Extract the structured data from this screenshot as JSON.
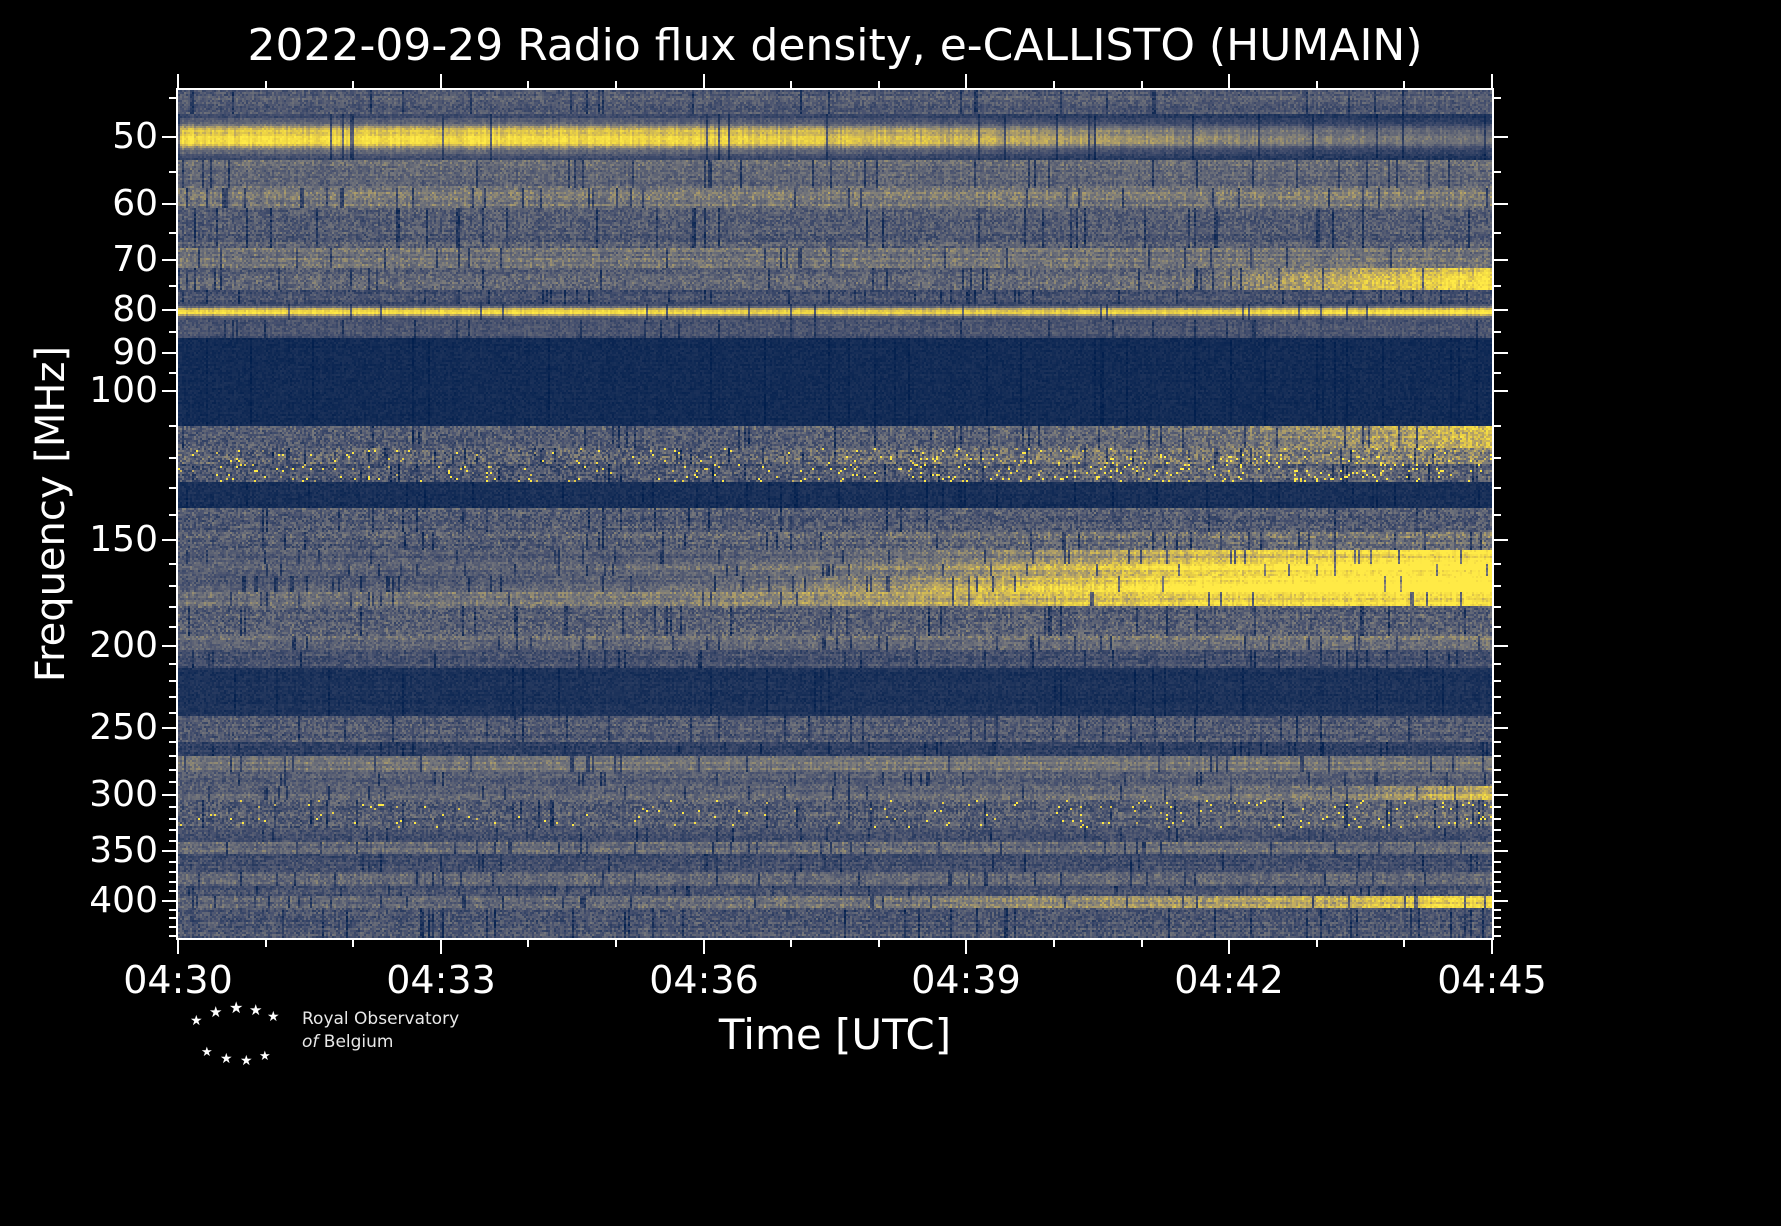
{
  "footer": {
    "logo_line1": "Royal Observatory",
    "logo_line2": "of Belgium",
    "star_glyph": "★",
    "star_count": 9
  },
  "chart_data": {
    "type": "heatmap",
    "title": "2022-09-29 Radio flux density, e-CALLISTO (HUMAIN)",
    "xlabel": "Time [UTC]",
    "ylabel": "Frequency [MHz]",
    "x_start": "04:30",
    "x_end": "04:45",
    "x_span_minutes": 15,
    "x_ticks": [
      {
        "minute": 0,
        "label": "04:30"
      },
      {
        "minute": 3,
        "label": "04:33"
      },
      {
        "minute": 6,
        "label": "04:36"
      },
      {
        "minute": 9,
        "label": "04:39"
      },
      {
        "minute": 12,
        "label": "04:42"
      },
      {
        "minute": 15,
        "label": "04:45"
      }
    ],
    "x_minor_ticks_min": [
      1,
      2,
      4,
      5,
      7,
      8,
      10,
      11,
      13,
      14
    ],
    "y_scale": "log",
    "f_min": 44,
    "f_max": 443,
    "y_ticks": [
      50,
      60,
      70,
      80,
      90,
      100,
      150,
      200,
      250,
      300,
      350,
      400
    ],
    "y_minor_ticks": [
      45,
      55,
      65,
      75,
      85,
      95,
      110,
      120,
      130,
      140,
      160,
      170,
      180,
      190,
      210,
      220,
      230,
      240,
      260,
      270,
      280,
      290,
      310,
      320,
      330,
      340,
      360,
      370,
      380,
      390,
      410,
      420,
      430,
      440
    ],
    "grid": false,
    "legend": "none",
    "colormap": {
      "name": "cividis-like",
      "stops": [
        [
          0.0,
          [
            0,
            30,
            77
          ]
        ],
        [
          0.3,
          [
            70,
            80,
            110
          ]
        ],
        [
          0.5,
          [
            118,
            119,
            123
          ]
        ],
        [
          0.7,
          [
            189,
            168,
            98
          ]
        ],
        [
          0.85,
          [
            234,
            208,
            68
          ]
        ],
        [
          1.0,
          [
            255,
            234,
            70
          ]
        ]
      ]
    },
    "bands": [
      {
        "f": [
          44,
          47.2
        ],
        "base": 0.36,
        "noise": 0.1
      },
      {
        "f": [
          47.2,
          53.5
        ],
        "base": 0.97,
        "noise": 0.06,
        "env": "gauss",
        "profile": [
          1,
          1,
          1,
          0.97,
          0.93,
          0.85,
          0.72,
          0.62,
          0.55,
          0.5
        ]
      },
      {
        "f": [
          53.5,
          57.5
        ],
        "base": 0.42,
        "noise": 0.1
      },
      {
        "f": [
          57.5,
          61
        ],
        "base": 0.5,
        "noise": 0.1
      },
      {
        "f": [
          61,
          68
        ],
        "base": 0.36,
        "noise": 0.12
      },
      {
        "f": [
          68,
          71.5
        ],
        "base": 0.48,
        "noise": 0.1
      },
      {
        "f": [
          71.5,
          76
        ],
        "base": 0.38,
        "noise": 0.12,
        "profile": [
          1,
          1,
          1,
          1,
          1,
          1,
          1.05,
          1.1,
          1.8,
          2.3
        ]
      },
      {
        "f": [
          76,
          79
        ],
        "base": 0.3,
        "noise": 0.1
      },
      {
        "f": [
          79,
          82.5
        ],
        "base": 0.95,
        "noise": 0.05,
        "env": "gauss",
        "profile": [
          1,
          1,
          1,
          1,
          0.95,
          0.92,
          0.92,
          0.95,
          1,
          1.05
        ]
      },
      {
        "f": [
          82.5,
          86.5
        ],
        "base": 0.3,
        "noise": 0.08
      },
      {
        "f": [
          86.5,
          110
        ],
        "base": 0.08,
        "noise": 0.04
      },
      {
        "f": [
          110,
          117
        ],
        "base": 0.4,
        "noise": 0.14,
        "profile": [
          0.9,
          0.9,
          0.9,
          0.9,
          0.92,
          0.95,
          1,
          1.1,
          1.5,
          2
        ]
      },
      {
        "f": [
          117,
          122
        ],
        "base": 0.42,
        "noise": 0.18,
        "spike": 0.02,
        "profile": [
          0.9,
          0.9,
          0.9,
          0.9,
          0.95,
          1,
          1.1,
          1.15,
          1.2,
          1.3
        ]
      },
      {
        "f": [
          122,
          128
        ],
        "base": 0.34,
        "noise": 0.16,
        "spike": 0.03,
        "profile": [
          0.95,
          0.95,
          0.95,
          0.95,
          1,
          1,
          1.1,
          1.2,
          1.1,
          1.1
        ]
      },
      {
        "f": [
          128,
          138
        ],
        "base": 0.1,
        "noise": 0.05
      },
      {
        "f": [
          138,
          147
        ],
        "base": 0.36,
        "noise": 0.14
      },
      {
        "f": [
          147,
          154
        ],
        "base": 0.4,
        "noise": 0.14,
        "profile": [
          0.9,
          0.9,
          0.9,
          0.95,
          1,
          1.05,
          1.1,
          1.1,
          1.15,
          1.2
        ]
      },
      {
        "f": [
          154,
          160
        ],
        "base": 0.45,
        "noise": 0.1,
        "profile": [
          0.8,
          0.8,
          0.8,
          0.8,
          0.85,
          1,
          1.3,
          1.7,
          2,
          2.2
        ]
      },
      {
        "f": [
          160,
          166
        ],
        "base": 0.48,
        "noise": 0.1,
        "profile": [
          0.8,
          0.8,
          0.8,
          0.85,
          0.95,
          1.1,
          1.5,
          1.9,
          2.2,
          2.3
        ]
      },
      {
        "f": [
          166,
          173
        ],
        "base": 0.5,
        "noise": 0.1,
        "profile": [
          0.72,
          0.72,
          0.72,
          0.78,
          0.9,
          1.2,
          1.6,
          2,
          2.3,
          2.4
        ]
      },
      {
        "f": [
          173,
          180
        ],
        "base": 0.52,
        "noise": 0.1,
        "profile": [
          0.9,
          0.9,
          0.95,
          1,
          1.1,
          1.3,
          1.5,
          1.7,
          1.8,
          1.85
        ]
      },
      {
        "f": [
          180,
          195
        ],
        "base": 0.38,
        "noise": 0.14
      },
      {
        "f": [
          195,
          203
        ],
        "base": 0.45,
        "noise": 0.1,
        "profile": [
          0.95,
          0.95,
          0.95,
          1,
          1,
          1,
          1.05,
          1.05,
          1.1,
          1.1
        ]
      },
      {
        "f": [
          203,
          213
        ],
        "base": 0.3,
        "noise": 0.1
      },
      {
        "f": [
          213,
          243
        ],
        "base": 0.12,
        "noise": 0.05
      },
      {
        "f": [
          243,
          260
        ],
        "base": 0.34,
        "noise": 0.12
      },
      {
        "f": [
          260,
          271
        ],
        "base": 0.2,
        "noise": 0.08
      },
      {
        "f": [
          271,
          283
        ],
        "base": 0.48,
        "noise": 0.08
      },
      {
        "f": [
          283,
          294
        ],
        "base": 0.38,
        "noise": 0.1
      },
      {
        "f": [
          294,
          305
        ],
        "base": 0.42,
        "noise": 0.1,
        "profile": [
          0.95,
          0.95,
          0.95,
          0.95,
          1,
          1,
          1.05,
          1.1,
          1.2,
          1.8
        ]
      },
      {
        "f": [
          305,
          330
        ],
        "base": 0.35,
        "noise": 0.14,
        "spike": 0.015,
        "profile": [
          1,
          1,
          1,
          1,
          1,
          1,
          1,
          1.05,
          1.15,
          1.2
        ]
      },
      {
        "f": [
          330,
          342
        ],
        "base": 0.3,
        "noise": 0.1
      },
      {
        "f": [
          342,
          353
        ],
        "base": 0.42,
        "noise": 0.1
      },
      {
        "f": [
          353,
          372
        ],
        "base": 0.28,
        "noise": 0.1
      },
      {
        "f": [
          372,
          386
        ],
        "base": 0.4,
        "noise": 0.1
      },
      {
        "f": [
          386,
          396
        ],
        "base": 0.3,
        "noise": 0.1
      },
      {
        "f": [
          396,
          409
        ],
        "base": 0.5,
        "noise": 0.1,
        "profile": [
          0.85,
          0.85,
          0.85,
          0.9,
          0.95,
          1,
          1.2,
          1.3,
          1.5,
          1.9
        ]
      },
      {
        "f": [
          409,
          443
        ],
        "base": 0.33,
        "noise": 0.12
      }
    ]
  }
}
